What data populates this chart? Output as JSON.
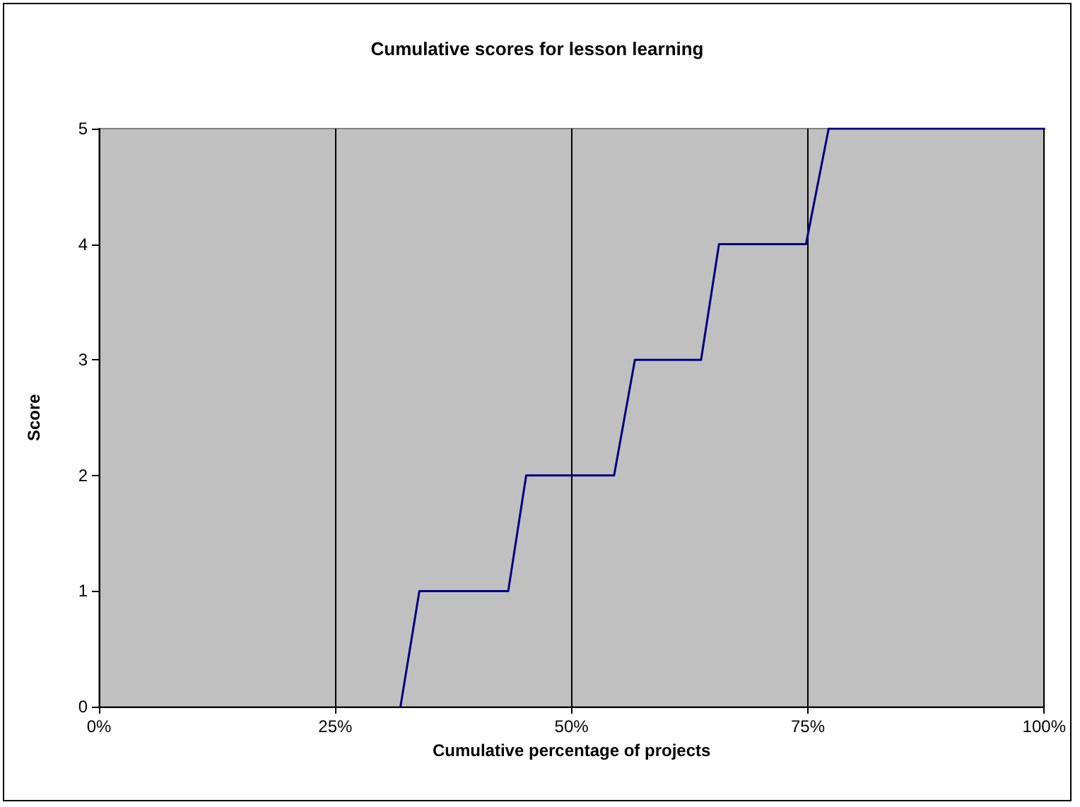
{
  "chart_data": {
    "type": "line",
    "title": "Cumulative scores for lesson learning",
    "xlabel": "Cumulative percentage of projects",
    "ylabel": "Score",
    "x": [
      31.9,
      33.9,
      43.3,
      45.2,
      54.5,
      56.7,
      63.7,
      65.6,
      74.8,
      77.2,
      97.8,
      100
    ],
    "series": [
      {
        "color": "#000080",
        "values": [
          0,
          1,
          1,
          2,
          2,
          3,
          3,
          4,
          4,
          5,
          5,
          5
        ]
      }
    ],
    "xlim": [
      0,
      100
    ],
    "xticks": [
      {
        "value": 0,
        "label": "0%"
      },
      {
        "value": 25,
        "label": "25%"
      },
      {
        "value": 50,
        "label": "50%"
      },
      {
        "value": 75,
        "label": "75%"
      },
      {
        "value": 100,
        "label": "100%"
      }
    ],
    "ylim": [
      0,
      5
    ],
    "yticks": [
      0,
      1,
      2,
      3,
      4,
      5
    ],
    "grid": "x",
    "marker": "none",
    "line_style": "solid"
  }
}
